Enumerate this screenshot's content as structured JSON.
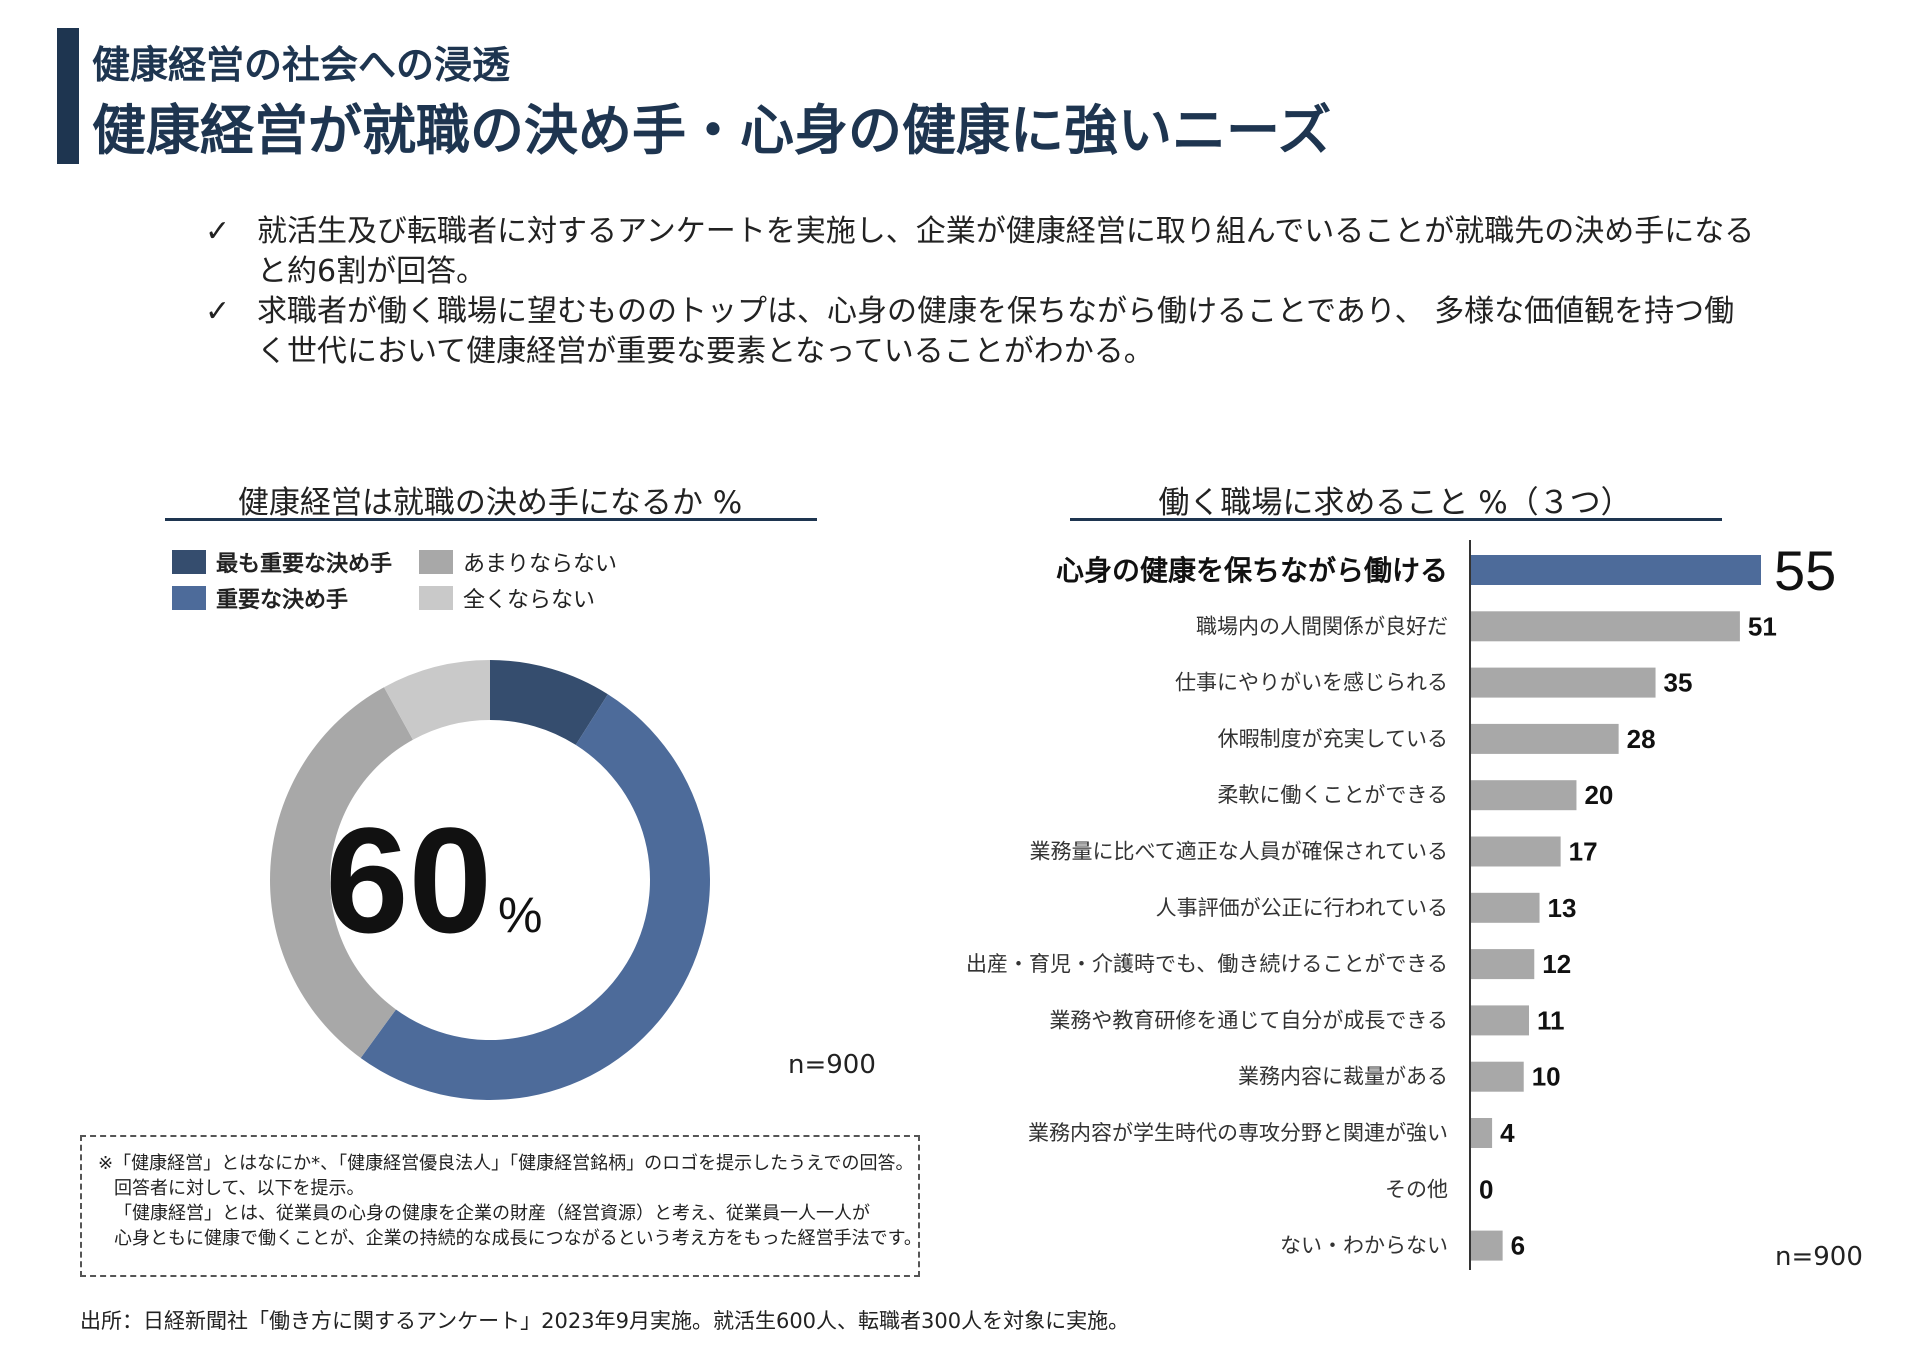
{
  "header": {
    "subtitle": "健康経営の社会への浸透",
    "title": "健康経営が就職の決め手・心身の健康に強いニーズ"
  },
  "bullets": [
    {
      "check": "✓",
      "text": "就活生及び転職者に対するアンケートを実施し、企業が健康経営に取り組んでいることが就職先の決め手になると約6割が回答。"
    },
    {
      "check": "✓",
      "text": "求職者が働く職場に望むもののトップは、心身の健康を保ちながら働けることであり、 多様な価値観を持つ働く世代において健康経営が重要な要素となっていることがわかる。"
    }
  ],
  "left_panel": {
    "heading": "健康経営は就職の決め手になるか %",
    "n_label": "n=900",
    "center_value": "60",
    "center_unit": "%",
    "legend": [
      {
        "label": "最も重要な決め手",
        "color": "#354d6e",
        "bold": true
      },
      {
        "label": "重要な決め手",
        "color": "#4d6b9a",
        "bold": true
      },
      {
        "label": "あまりならない",
        "color": "#a8a8a8",
        "bold": false
      },
      {
        "label": "全くならない",
        "color": "#c9c9c9",
        "bold": false
      }
    ]
  },
  "right_panel": {
    "heading": "働く職場に求めること %（３つ）",
    "n_label": "n=900"
  },
  "note": {
    "lines": [
      "※「健康経営」とはなにか*、「健康経営優良法人」「健康経営銘柄」のロゴを提示したうえでの回答。",
      "回答者に対して、以下を提示。",
      "「健康経営」とは、従業員の心身の健康を企業の財産（経営資源）と考え、従業員一人一人が",
      "心身ともに健康で働くことが、企業の持続的な成長につながるという考え方をもった経営手法です。"
    ]
  },
  "source": "出所：日経新聞社「働き方に関するアンケート」2023年9月実施。就活生600人、転職者300人を対象に実施。",
  "chart_data": [
    {
      "type": "pie",
      "categories": [
        "最も重要な決め手",
        "重要な決め手",
        "あまりならない",
        "全くならない"
      ],
      "values": [
        9,
        51,
        32,
        8
      ],
      "colors": [
        "#354d6e",
        "#4d6b9a",
        "#a8a8a8",
        "#c9c9c9"
      ],
      "title": "健康経営は就職の決め手になるか %",
      "center_label": "60%",
      "legend": "top-left"
    },
    {
      "type": "bar",
      "orientation": "horizontal",
      "title": "働く職場に求めること %（３つ）",
      "categories": [
        "心身の健康を保ちながら働ける",
        "職場内の人間関係が良好だ",
        "仕事にやりがいを感じられる",
        "休暇制度が充実している",
        "柔軟に働くことができる",
        "業務量に比べて適正な人員が確保されている",
        "人事評価が公正に行われている",
        "出産・育児・介護時でも、働き続けることができる",
        "業務や教育研修を通じて自分が成長できる",
        "業務内容に裁量がある",
        "業務内容が学生時代の専攻分野と関連が強い",
        "その他",
        "ない・わからない"
      ],
      "values": [
        55,
        51,
        35,
        28,
        20,
        17,
        13,
        12,
        11,
        10,
        4,
        0,
        6
      ],
      "highlight_color": "#4d6b9a",
      "bar_color": "#a8a8a8",
      "xlim": [
        0,
        55
      ]
    }
  ]
}
